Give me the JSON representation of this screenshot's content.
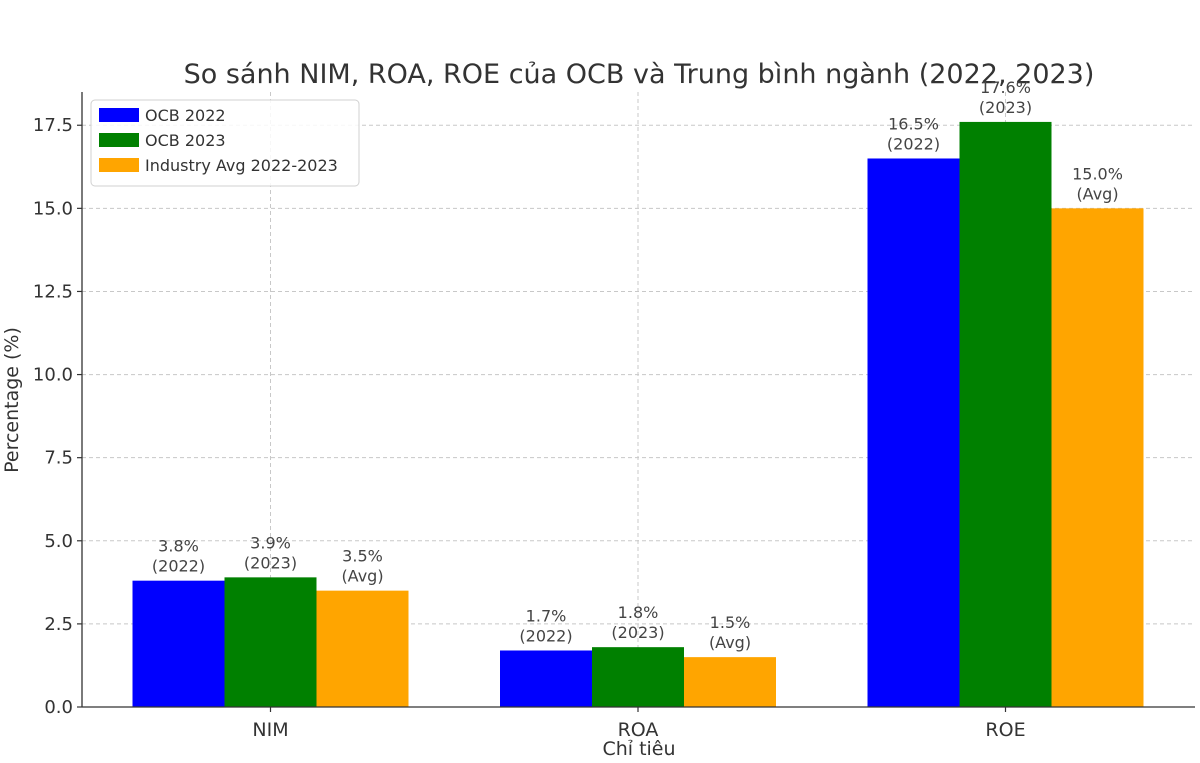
{
  "chart_data": {
    "type": "bar",
    "title": "So sánh NIM, ROA, ROE của OCB và Trung bình ngành (2022, 2023)",
    "xlabel": "Chỉ tiêu",
    "ylabel": "Percentage (%)",
    "ylim": [
      0,
      18.5
    ],
    "yticks": [
      "0.0",
      "2.5",
      "5.0",
      "7.5",
      "10.0",
      "12.5",
      "15.0",
      "17.5"
    ],
    "categories": [
      "NIM",
      "ROA",
      "ROE"
    ],
    "grid": true,
    "legend_position": "top-left",
    "series": [
      {
        "name": "OCB 2022",
        "color": "#0000ff",
        "values": [
          3.8,
          1.7,
          16.5
        ],
        "labels": [
          [
            "3.8%",
            "(2022)"
          ],
          [
            "1.7%",
            "(2022)"
          ],
          [
            "16.5%",
            "(2022)"
          ]
        ]
      },
      {
        "name": "OCB 2023",
        "color": "#008000",
        "values": [
          3.9,
          1.8,
          17.6
        ],
        "labels": [
          [
            "3.9%",
            "(2023)"
          ],
          [
            "1.8%",
            "(2023)"
          ],
          [
            "17.6%",
            "(2023)"
          ]
        ]
      },
      {
        "name": "Industry Avg 2022-2023",
        "color": "#ffa500",
        "values": [
          3.5,
          1.5,
          15.0
        ],
        "labels": [
          [
            "3.5%",
            "(Avg)"
          ],
          [
            "1.5%",
            "(Avg)"
          ],
          [
            "15.0%",
            "(Avg)"
          ]
        ]
      }
    ]
  }
}
